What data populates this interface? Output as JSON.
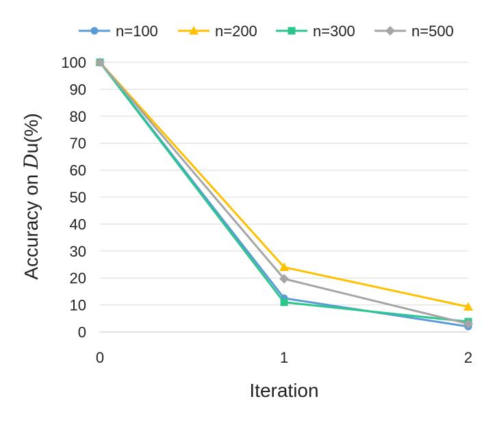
{
  "chart_data": {
    "type": "line",
    "x": [
      0,
      1,
      2
    ],
    "x_tick_labels": [
      "0",
      "1",
      "2"
    ],
    "xlabel": "Iteration",
    "ylabel": {
      "prefix": "Accuracy on ",
      "symbol": "D",
      "suffix": "u(%)"
    },
    "ylim": [
      0,
      100
    ],
    "y_ticks": [
      0,
      10,
      20,
      30,
      40,
      50,
      60,
      70,
      80,
      90,
      100
    ],
    "grid": true,
    "legend_position": "top",
    "series": [
      {
        "name": "n=100",
        "color": "#5B9BD5",
        "marker": "circle",
        "values": [
          100,
          12.5,
          2
        ]
      },
      {
        "name": "n=200",
        "color": "#FFC000",
        "marker": "triangle",
        "values": [
          100,
          24,
          9.3
        ]
      },
      {
        "name": "n=300",
        "color": "#2BC68E",
        "marker": "square",
        "values": [
          100,
          11,
          3.8
        ]
      },
      {
        "name": "n=500",
        "color": "#A5A5A5",
        "marker": "diamond",
        "values": [
          100,
          19.7,
          3
        ]
      }
    ]
  }
}
